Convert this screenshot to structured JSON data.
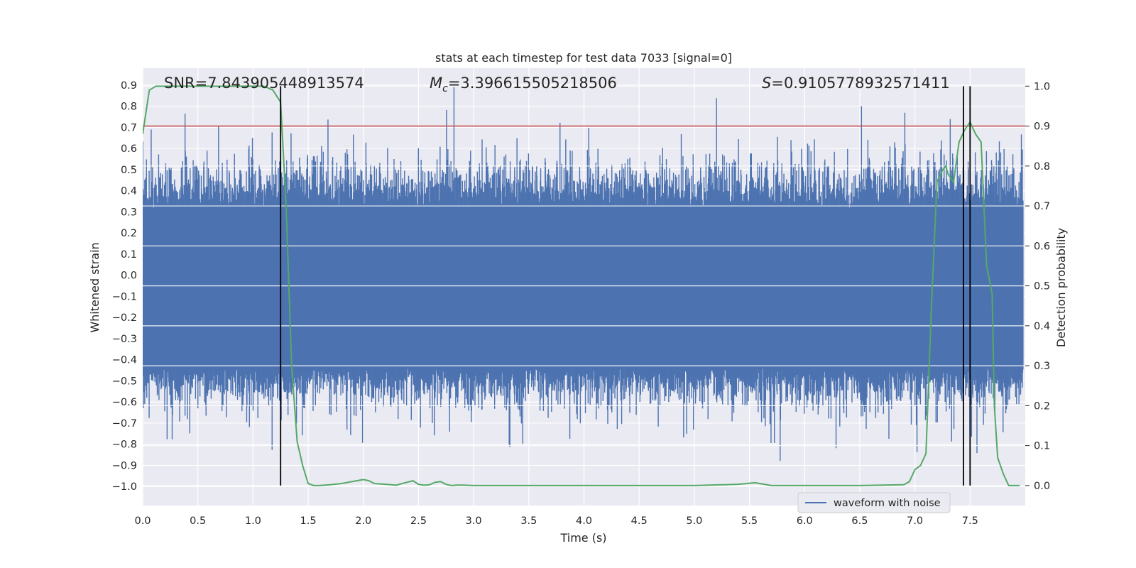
{
  "chart_data": {
    "type": "line",
    "title": "stats at each timestep for test data 7033 [signal=0]",
    "xlabel": "Time (s)",
    "ylabel_left": "Whitened strain",
    "ylabel_right": "Detection probability",
    "xlim": [
      0.0,
      8.0
    ],
    "ylim_left": [
      -1.09,
      0.98
    ],
    "ylim_right": [
      -0.05,
      1.045
    ],
    "x_ticks": [
      "0.0",
      "0.5",
      "1.0",
      "1.5",
      "2.0",
      "2.5",
      "3.0",
      "3.5",
      "4.0",
      "4.5",
      "5.0",
      "5.5",
      "6.0",
      "6.5",
      "7.0",
      "7.5"
    ],
    "y_left_ticks": [
      "0.9",
      "0.8",
      "0.7",
      "0.6",
      "0.5",
      "0.4",
      "0.3",
      "0.2",
      "0.1",
      "0.0",
      "−0.1",
      "−0.2",
      "−0.3",
      "−0.4",
      "−0.5",
      "−0.6",
      "−0.7",
      "−0.8",
      "−0.9",
      "−1.0"
    ],
    "y_right_ticks": [
      "1.0",
      "0.9",
      "0.8",
      "0.7",
      "0.6",
      "0.5",
      "0.4",
      "0.3",
      "0.2",
      "0.1",
      "0.0"
    ],
    "annotations": {
      "snr": "SNR=7.843905448913574",
      "mc_prefix": "M",
      "mc_sub": "c",
      "mc_value": "=3.396615505218506",
      "s_prefix": "S",
      "s_value": "=0.9105778932571411"
    },
    "threshold": 0.9,
    "vertical_lines": [
      1.25,
      7.44,
      7.5
    ],
    "series": [
      {
        "name": "waveform with noise",
        "core_band": [
          -0.43,
          0.31
        ],
        "peak_abs_max": 0.89,
        "color": "#4c72b0"
      },
      {
        "name": "detection probability",
        "color": "#55a868",
        "x": [
          0.0,
          0.06,
          0.12,
          0.2,
          0.4,
          0.6,
          0.8,
          1.0,
          1.1,
          1.18,
          1.25,
          1.3,
          1.35,
          1.4,
          1.45,
          1.5,
          1.55,
          1.6,
          1.7,
          1.8,
          1.9,
          2.0,
          2.05,
          2.1,
          2.2,
          2.3,
          2.35,
          2.45,
          2.5,
          2.55,
          2.6,
          2.65,
          2.7,
          2.75,
          2.8,
          2.85,
          2.9,
          3.0,
          3.2,
          3.5,
          4.0,
          4.5,
          5.0,
          5.4,
          5.55,
          5.7,
          6.0,
          6.5,
          6.9,
          6.95,
          7.0,
          7.05,
          7.1,
          7.15,
          7.2,
          7.25,
          7.28,
          7.3,
          7.35,
          7.4,
          7.45,
          7.5,
          7.55,
          7.6,
          7.65,
          7.7,
          7.72,
          7.75,
          7.8,
          7.85,
          7.9,
          7.95
        ],
        "y": [
          0.88,
          0.99,
          1.0,
          1.0,
          1.0,
          1.0,
          1.0,
          1.0,
          1.0,
          0.99,
          0.96,
          0.7,
          0.3,
          0.11,
          0.05,
          0.005,
          0.0,
          0.0,
          0.002,
          0.005,
          0.01,
          0.015,
          0.012,
          0.005,
          0.003,
          0.001,
          0.005,
          0.012,
          0.003,
          0.001,
          0.002,
          0.008,
          0.01,
          0.003,
          0.0,
          0.001,
          0.001,
          0.0,
          0.0,
          0.0,
          0.0,
          0.0,
          0.0,
          0.003,
          0.007,
          0.0,
          0.0,
          0.0,
          0.002,
          0.01,
          0.04,
          0.05,
          0.08,
          0.45,
          0.76,
          0.79,
          0.8,
          0.78,
          0.76,
          0.86,
          0.89,
          0.91,
          0.88,
          0.86,
          0.55,
          0.48,
          0.2,
          0.07,
          0.03,
          0.0,
          0.0,
          0.0
        ]
      }
    ],
    "legend": {
      "position": "lower-right",
      "label": "waveform with noise"
    }
  }
}
